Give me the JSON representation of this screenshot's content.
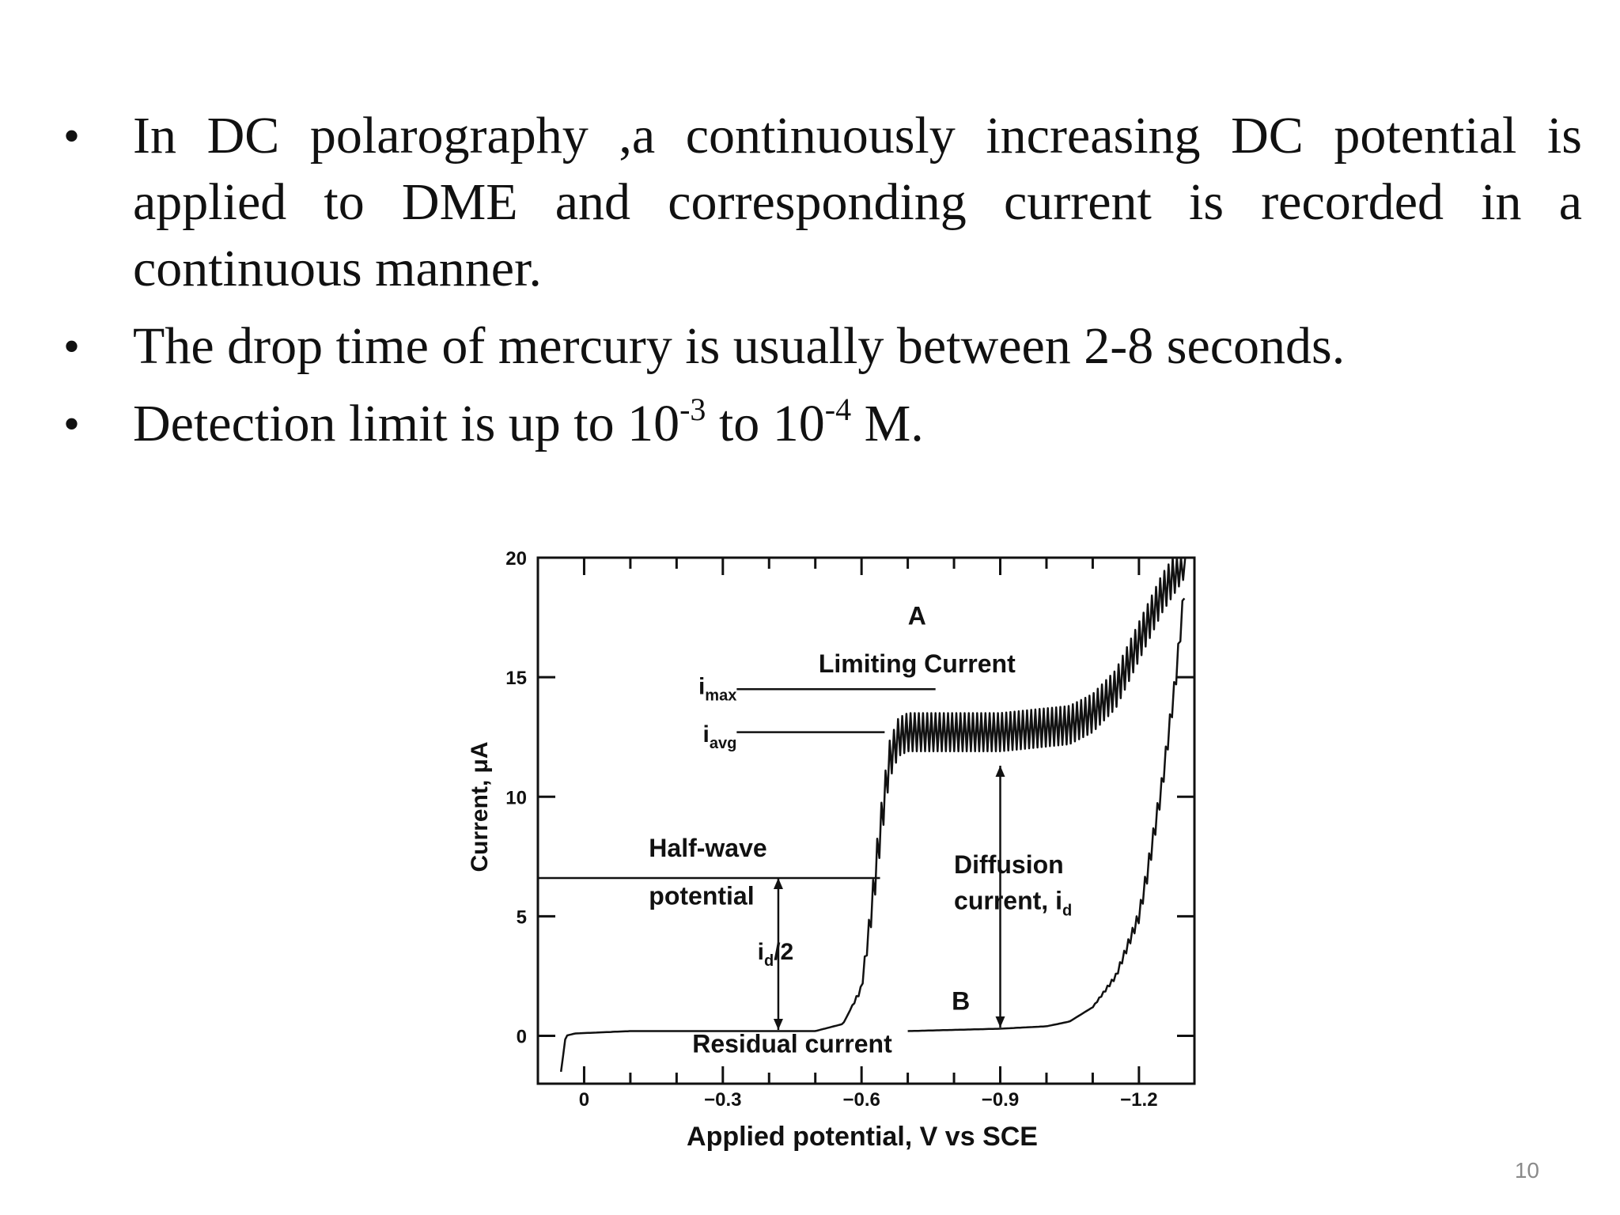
{
  "slide": {
    "bullet_1": "In DC polarography ,a continuously increasing DC potential is applied to DME and corresponding current is recorded in a continuous manner.",
    "bullet_2": "The drop time of mercury is usually between 2-8 seconds.",
    "bullet_3": {
      "before": "Detection limit is up to 10",
      "exp1": "-3",
      "middle": " to 10",
      "exp2": "-4",
      "after": " M."
    },
    "bullet_marker": "•",
    "page_number": "10"
  },
  "chart_data": {
    "type": "line",
    "xlabel": "Applied potential, V vs SCE",
    "ylabel": "Current, μA",
    "xlim": [
      0.1,
      -1.32
    ],
    "ylim": [
      -2,
      20
    ],
    "x_ticks": [
      0,
      -0.3,
      -0.6,
      -0.9,
      -1.2
    ],
    "x_tick_labels": [
      "0",
      "−0.3",
      "−0.6",
      "−0.9",
      "−1.2"
    ],
    "y_ticks": [
      0,
      5,
      10,
      15,
      20
    ],
    "y_tick_labels": [
      "0",
      "5",
      "10",
      "15",
      "20"
    ],
    "series": [
      {
        "label": "A",
        "x": [
          0.05,
          0.04,
          0.02,
          -0.1,
          -0.3,
          -0.5,
          -0.56,
          -0.6,
          -0.62,
          -0.64,
          -0.66,
          -0.68,
          -0.7,
          -0.9,
          -1.05,
          -1.1,
          -1.15,
          -1.2,
          -1.25,
          -1.3
        ],
        "y": [
          -1.5,
          0,
          0.1,
          0.2,
          0.2,
          0.2,
          0.5,
          2,
          5,
          8.5,
          11.5,
          12.5,
          12.7,
          12.7,
          13.0,
          13.5,
          14.5,
          16.5,
          18.5,
          20
        ],
        "oscillation_amplitude": 1.6
      },
      {
        "label": "B",
        "x": [
          -0.7,
          -0.9,
          -1.0,
          -1.05,
          -1.1,
          -1.15,
          -1.2,
          -1.22,
          -1.25,
          -1.28,
          -1.3
        ],
        "y": [
          0.2,
          0.3,
          0.4,
          0.6,
          1.2,
          2.5,
          5,
          7,
          10.5,
          15,
          19
        ],
        "oscillation_amplitude": 0.8
      }
    ],
    "annotations": {
      "label_a": "A",
      "limiting_current": "Limiting Current",
      "i_max": "i",
      "i_max_sub": "max",
      "i_avg": "i",
      "i_avg_sub": "avg",
      "half_wave_1": "Half-wave",
      "half_wave_2": "potential",
      "id_half": "i",
      "id_half_sub": "d",
      "id_half_tail": "/2",
      "diffusion_1": "Diffusion",
      "diffusion_2": "current, i",
      "diffusion_sub": "d",
      "label_b": "B",
      "residual": "Residual current"
    },
    "reference_values": {
      "i_max": 14.5,
      "i_avg": 12.7,
      "half_wave_current": 6.6,
      "half_wave_potential": -0.64,
      "diffusion_arrow_potential": -0.9
    },
    "grid": false,
    "legend": "none"
  }
}
